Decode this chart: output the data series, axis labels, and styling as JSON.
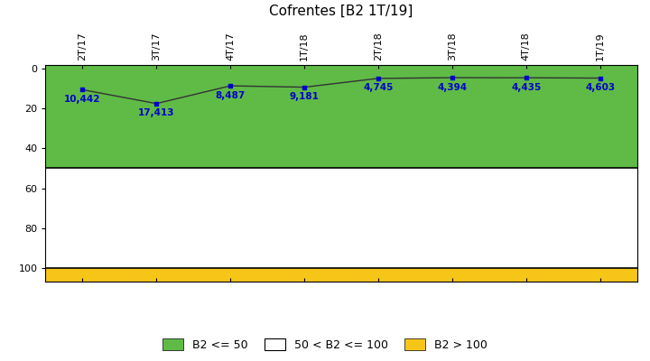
{
  "title": "Cofrentes [B2 1T/19]",
  "x_labels": [
    "2T/17",
    "3T/17",
    "4T/17",
    "1T/18",
    "2T/18",
    "3T/18",
    "4T/18",
    "1T/19"
  ],
  "y_values": [
    10.442,
    17.413,
    8.487,
    9.181,
    4.745,
    4.394,
    4.435,
    4.603
  ],
  "y_labels_display": [
    "10,442",
    "17,413",
    "8,487",
    "9,181",
    "4,745",
    "4,394",
    "4,435",
    "4,603"
  ],
  "ylim": [
    -2,
    107
  ],
  "yticks": [
    0,
    20,
    40,
    60,
    80,
    100
  ],
  "zone_green_upper": 50,
  "zone_white_upper": 100,
  "zone_yellow_upper": 107,
  "bg_color": "#ffffff",
  "green_color": "#5fbb46",
  "yellow_color": "#f5c518",
  "line_color": "#333333",
  "dot_color": "#0000cc",
  "label_color": "#0000cc",
  "title_fontsize": 11,
  "legend_labels": [
    "B2 <= 50",
    "50 < B2 <= 100",
    "B2 > 100"
  ],
  "legend_colors": [
    "#5fbb46",
    "#ffffff",
    "#f5c518"
  ],
  "label_offsets": [
    3.0,
    3.0,
    3.0,
    3.0,
    0.5,
    0.5,
    0.5,
    0.5
  ]
}
